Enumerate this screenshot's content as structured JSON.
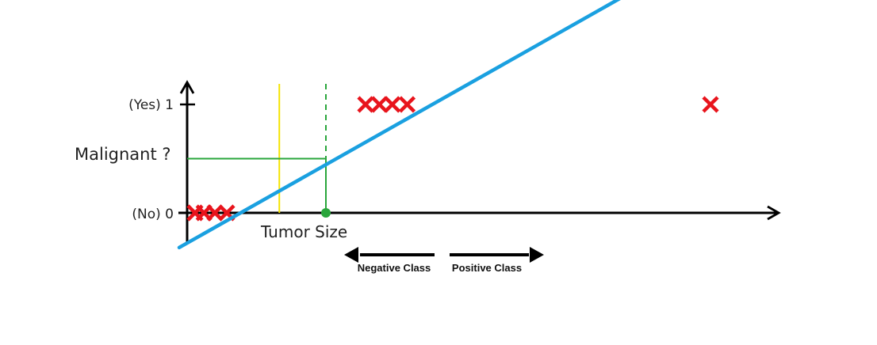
{
  "chart_data": {
    "type": "scatter",
    "title": "",
    "xlabel": "Tumor Size",
    "ylabel": "Malignant ?",
    "y_tick_labels": [
      "(No) 0",
      "(Yes) 1"
    ],
    "y_values": [
      0,
      1
    ],
    "points": [
      {
        "x": 0.08,
        "y": 0
      },
      {
        "x": 0.17,
        "y": 0
      },
      {
        "x": 0.28,
        "y": 0
      },
      {
        "x": 0.4,
        "y": 0
      },
      {
        "x": 1.8,
        "y": 1
      },
      {
        "x": 1.94,
        "y": 1
      },
      {
        "x": 2.07,
        "y": 1
      },
      {
        "x": 2.22,
        "y": 1
      },
      {
        "x": 5.28,
        "y": 1
      }
    ],
    "regression_line": {
      "x0": -0.08,
      "y0": -0.32,
      "x1": 5.28,
      "y1": 2.45
    },
    "threshold_y": 0.5,
    "yellow_line_x": 0.93,
    "decision_x": 1.4,
    "negative_class_label": "Negative Class",
    "positive_class_label": "Positive Class",
    "colors": {
      "axis": "#000000",
      "points": "#e8141c",
      "regression": "#1aa0e0",
      "threshold": "#2aa63c",
      "yellow": "#f5e400"
    },
    "legend": "none",
    "grid": false
  }
}
